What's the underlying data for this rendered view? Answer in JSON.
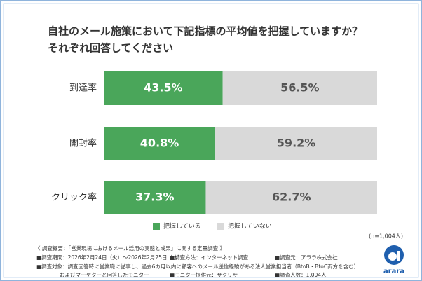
{
  "chart_data": {
    "type": "stacked_bar_horizontal",
    "title": [
      "自社のメール施策において下記指標の平均値を把握していますか？",
      "それぞれ回答してください"
    ],
    "categories": [
      "到達率",
      "開封率",
      "クリック率"
    ],
    "series": [
      {
        "name": "把握している",
        "color": "#4aa65a",
        "values": [
          43.5,
          40.8,
          37.3
        ],
        "value_labels": [
          "43.5%",
          "40.8%",
          "37.3%"
        ]
      },
      {
        "name": "把握していない",
        "color": "#d9d9d9",
        "values": [
          56.5,
          59.2,
          62.7
        ],
        "value_labels": [
          "56.5%",
          "59.2%",
          "62.7%"
        ]
      }
    ],
    "legend": "bottom",
    "note": "(n=1,004人)"
  },
  "footer": [
    [
      "《 調査概要：「営業現場におけるメール活用の実態と成果」に関する定量調査 》"
    ],
    [
      "■調査期間：2026年2月24日（火）～2026年2月25日（水）",
      "■調査方法：インターネット調査",
      "■調査元：アララ株式会社"
    ],
    [
      "■調査対象：調査回答時に営業職に従事し、過去6カ月以内に顧客へのメール送信経験がある法人営業担当者（BtoB・BtoC両方を含む）"
    ],
    [
      "およびマーケターと回答したモニター",
      "■モニター提供元：サクリサ",
      "■調査人数：1,004人"
    ]
  ],
  "logo": {
    "text": "arara"
  }
}
